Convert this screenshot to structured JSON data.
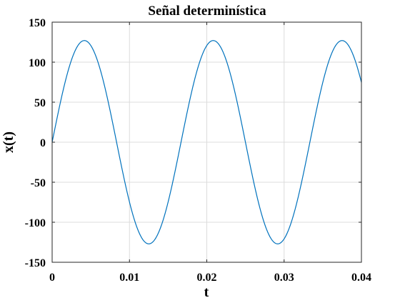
{
  "chart_data": {
    "type": "line",
    "title": "Señal determinística",
    "xlabel": "t",
    "ylabel": "x(t)",
    "xlim": [
      0,
      0.04
    ],
    "ylim": [
      -150,
      150
    ],
    "x_ticks": [
      0,
      0.01,
      0.02,
      0.03,
      0.04
    ],
    "x_tick_labels": [
      "0",
      "0.01",
      "0.02",
      "0.03",
      "0.04"
    ],
    "y_ticks": [
      150,
      100,
      50,
      0,
      -50,
      -100,
      -150
    ],
    "y_tick_labels": [
      "150",
      "100",
      "50",
      "0",
      "-50",
      "-100",
      "-150"
    ],
    "grid": true,
    "series": [
      {
        "color": "#0072bd",
        "function": "amplitude * sin(2*pi*frequency*t)",
        "amplitude": 127,
        "frequency": 60,
        "t_range": [
          0,
          0.04
        ]
      }
    ]
  }
}
